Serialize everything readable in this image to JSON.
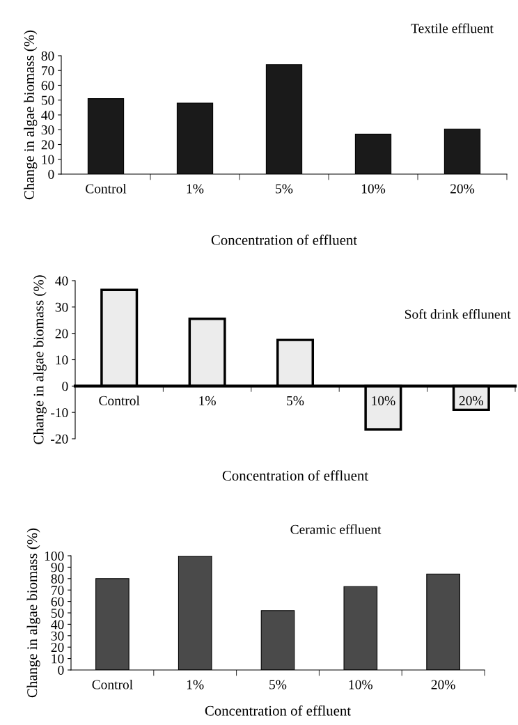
{
  "chart_data": [
    {
      "type": "bar",
      "title": "Textile effluent",
      "xlabel": "Concentration of effluent",
      "ylabel": "Change in algae biomass (%)",
      "categories": [
        "Control",
        "1%",
        "5%",
        "10%",
        "20%"
      ],
      "values": [
        51,
        48,
        74,
        27,
        30.5
      ],
      "color": "#1a1a1a",
      "ylim": [
        0,
        80
      ],
      "yticks": [
        0,
        10,
        20,
        30,
        40,
        50,
        60,
        70,
        80
      ],
      "grid": false,
      "legend": false
    },
    {
      "type": "bar",
      "title": "Soft drink efflunent",
      "xlabel": "Concentration of effluent",
      "ylabel": "Change in algae biomass (%)",
      "categories": [
        "Control",
        "1%",
        "5%",
        "10%",
        "20%"
      ],
      "values": [
        36.5,
        25.5,
        17.5,
        -16.5,
        -9
      ],
      "color": "#ececec",
      "ylim": [
        -20,
        40
      ],
      "yticks": [
        -20,
        -10,
        0,
        10,
        20,
        30,
        40
      ],
      "grid": false,
      "legend": false
    },
    {
      "type": "bar",
      "title": "Ceramic effluent",
      "xlabel": "Concentration of effluent",
      "ylabel": "Change in algae biomass (%)",
      "categories": [
        "Control",
        "1%",
        "5%",
        "10%",
        "20%"
      ],
      "values": [
        80,
        100,
        52,
        73,
        84
      ],
      "color": "#4a4a4a",
      "ylim": [
        0,
        100
      ],
      "yticks": [
        0,
        10,
        20,
        30,
        40,
        50,
        60,
        70,
        80,
        90,
        100
      ],
      "grid": false,
      "legend": false
    }
  ]
}
